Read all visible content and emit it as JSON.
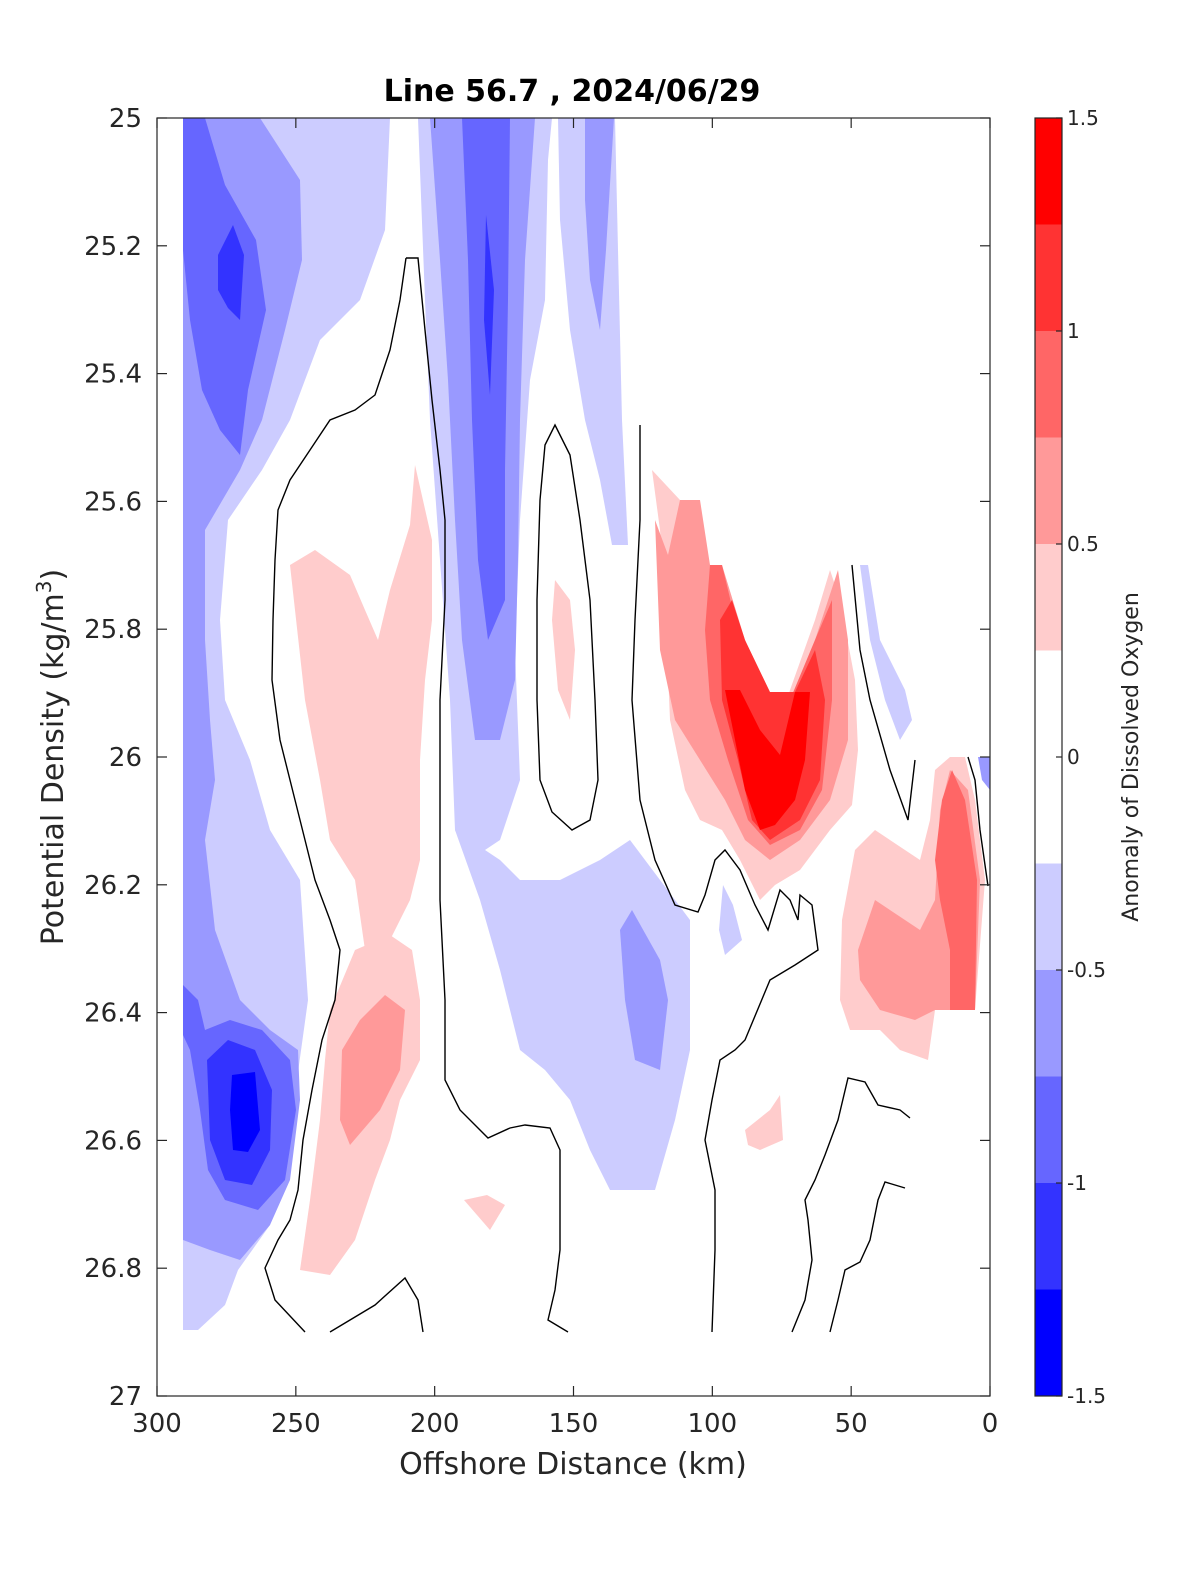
{
  "chart_data": {
    "type": "heatmap",
    "title": "Line 56.7 , 2024/06/29",
    "xlabel": "Offshore Distance (km)",
    "ylabel": "Potential Density (kg/m",
    "ylabel_sup": "3",
    "ylabel_close": ")",
    "xlim": [
      300,
      0
    ],
    "ylim": [
      25,
      27
    ],
    "x_reversed": true,
    "y_reversed": true,
    "x_ticks": [
      "300",
      "250",
      "200",
      "150",
      "100",
      "50",
      "0"
    ],
    "x_tick_values": [
      300,
      250,
      200,
      150,
      100,
      50,
      0
    ],
    "y_ticks": [
      "25",
      "25.2",
      "25.4",
      "25.6",
      "25.8",
      "26",
      "26.2",
      "26.4",
      "26.6",
      "26.8",
      "27"
    ],
    "y_tick_values": [
      25,
      25.2,
      25.4,
      25.6,
      25.8,
      26,
      26.2,
      26.4,
      26.6,
      26.8,
      27
    ],
    "grid": false,
    "colorbar": {
      "label": "Anomaly of Dissolved Oxygen",
      "range": [
        -1.5,
        1.5
      ],
      "ticks": [
        "-1.5",
        "-1",
        "-0.5",
        "0",
        "0.5",
        "1",
        "1.5"
      ],
      "tick_values": [
        -1.5,
        -1,
        -0.5,
        0,
        0.5,
        1,
        1.5
      ],
      "levels": [
        {
          "from": -1.5,
          "to": -1.25,
          "color": "#0000ff"
        },
        {
          "from": -1.25,
          "to": -1.0,
          "color": "#3333ff"
        },
        {
          "from": -1.0,
          "to": -0.75,
          "color": "#6666ff"
        },
        {
          "from": -0.75,
          "to": -0.5,
          "color": "#9999ff"
        },
        {
          "from": -0.5,
          "to": -0.25,
          "color": "#ccccff"
        },
        {
          "from": -0.25,
          "to": 0.25,
          "color": "#ffffff"
        },
        {
          "from": 0.25,
          "to": 0.5,
          "color": "#ffcccc"
        },
        {
          "from": 0.5,
          "to": 0.75,
          "color": "#ff9999"
        },
        {
          "from": 0.75,
          "to": 1.0,
          "color": "#ff6666"
        },
        {
          "from": 1.0,
          "to": 1.25,
          "color": "#ff3333"
        },
        {
          "from": 1.25,
          "to": 1.5,
          "color": "#ff0000"
        }
      ]
    },
    "regions": [
      {
        "name": "offshore-negative-band",
        "level": -0.5,
        "points": [
          [
            290,
            25
          ],
          [
            263,
            25
          ],
          [
            253,
            25.4
          ],
          [
            245,
            25.8
          ],
          [
            235,
            26.2
          ],
          [
            250,
            26.5
          ],
          [
            270,
            26.9
          ],
          [
            290,
            26.9
          ]
        ]
      },
      {
        "name": "offshore-negative-core",
        "level": -0.75,
        "points": [
          [
            290,
            25.0
          ],
          [
            283,
            25.05
          ],
          [
            276,
            25.3
          ],
          [
            270,
            25.5
          ],
          [
            278,
            25.65
          ],
          [
            290,
            25.65
          ]
        ]
      },
      {
        "name": "offshore-minimum-upper",
        "level": -1.25,
        "points": [
          [
            281,
            25.1
          ],
          [
            274,
            25.12
          ],
          [
            266,
            25.3
          ],
          [
            272,
            25.52
          ],
          [
            282,
            25.35
          ]
        ]
      },
      {
        "name": "offshore-minimum-upper-core",
        "level": -1.5,
        "points": [
          [
            277,
            25.18
          ],
          [
            272,
            25.2
          ],
          [
            269,
            25.32
          ],
          [
            275,
            25.3
          ]
        ]
      },
      {
        "name": "offshore-minimum-lower",
        "level": -1.25,
        "points": [
          [
            289,
            26.35
          ],
          [
            280,
            26.45
          ],
          [
            262,
            26.5
          ],
          [
            258,
            26.65
          ],
          [
            272,
            26.72
          ],
          [
            286,
            26.6
          ]
        ]
      },
      {
        "name": "offshore-minimum-lower-core",
        "level": -1.5,
        "points": [
          [
            278,
            26.48
          ],
          [
            266,
            26.5
          ],
          [
            264,
            26.6
          ],
          [
            275,
            26.62
          ]
        ]
      },
      {
        "name": "central-negative-column",
        "level": -0.75,
        "points": [
          [
            200,
            25
          ],
          [
            170,
            25
          ],
          [
            165,
            25.5
          ],
          [
            172,
            25.9
          ],
          [
            186,
            25.95
          ],
          [
            190,
            25.5
          ]
        ]
      },
      {
        "name": "central-negative-core",
        "level": -1.25,
        "points": [
          [
            184,
            25.15
          ],
          [
            178,
            25.2
          ],
          [
            178,
            25.42
          ],
          [
            182,
            25.4
          ]
        ]
      },
      {
        "name": "nearshore-negative-patch",
        "level": -0.5,
        "points": [
          [
            170,
            26.15
          ],
          [
            130,
            26.1
          ],
          [
            110,
            26.2
          ],
          [
            115,
            26.45
          ],
          [
            130,
            26.7
          ],
          [
            155,
            26.6
          ]
        ]
      },
      {
        "name": "positive-patch-west",
        "level": 0.25,
        "points": [
          [
            243,
            25.7
          ],
          [
            215,
            25.55
          ],
          [
            205,
            25.7
          ],
          [
            210,
            26.2
          ],
          [
            220,
            26.3
          ],
          [
            235,
            26.0
          ]
        ]
      },
      {
        "name": "positive-patch-lower",
        "level": 0.5,
        "points": [
          [
            236,
            26.5
          ],
          [
            225,
            26.35
          ],
          [
            213,
            26.4
          ],
          [
            218,
            26.55
          ],
          [
            232,
            26.62
          ]
        ]
      },
      {
        "name": "nearshore-positive-maximum",
        "level": 1.25,
        "points": [
          [
            92,
            25.9
          ],
          [
            83,
            25.9
          ],
          [
            78,
            26.0
          ],
          [
            73,
            25.9
          ],
          [
            68,
            25.9
          ],
          [
            75,
            26.1
          ],
          [
            85,
            26.1
          ]
        ]
      },
      {
        "name": "coastal-positive-patch",
        "level": 0.75,
        "points": [
          [
            18,
            26.05
          ],
          [
            10,
            26.0
          ],
          [
            4,
            26.2
          ],
          [
            5,
            26.4
          ],
          [
            15,
            26.4
          ]
        ]
      }
    ]
  }
}
